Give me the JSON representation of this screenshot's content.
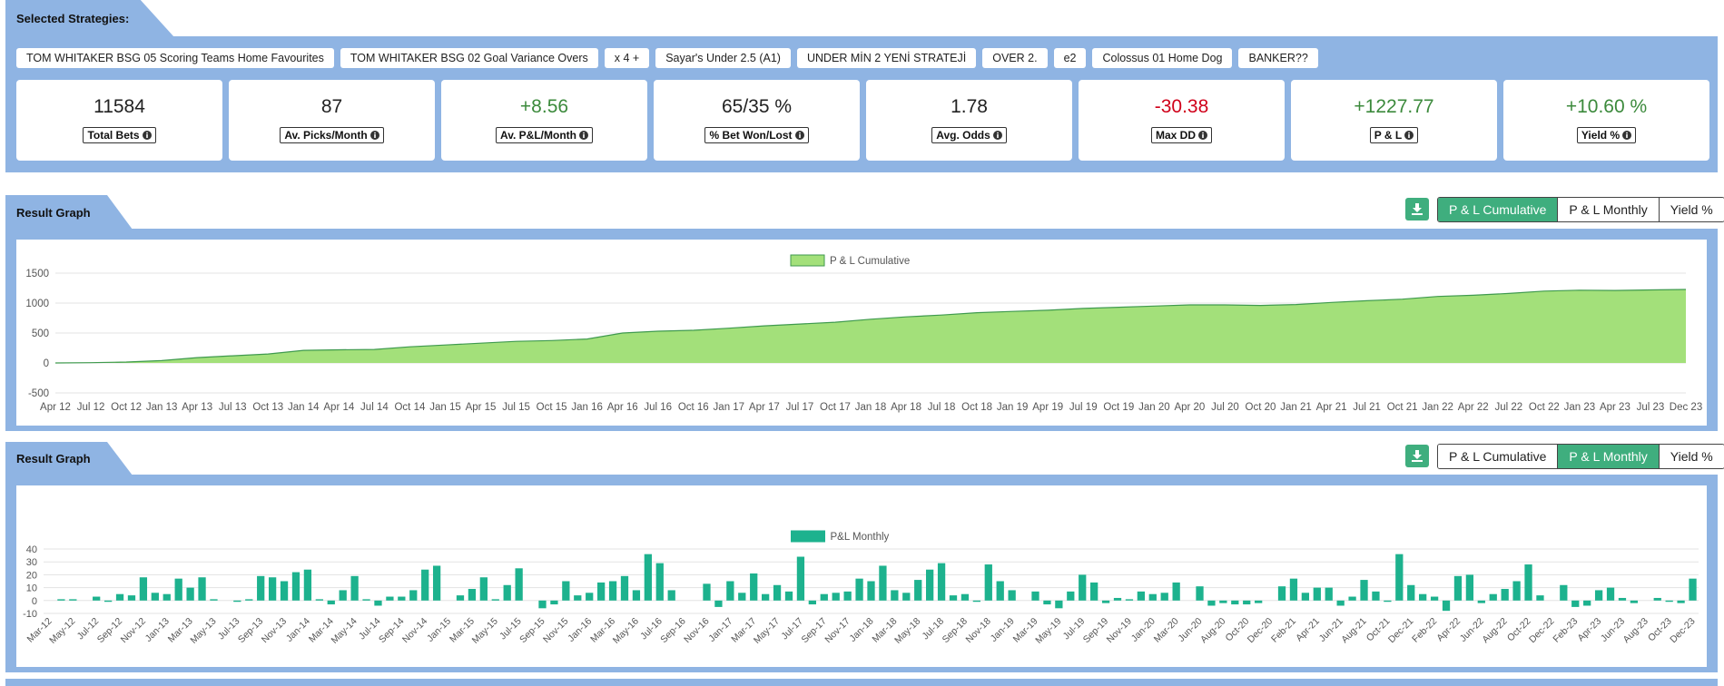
{
  "header": {
    "title": "Selected Strategies:"
  },
  "strategies": [
    "TOM WHITAKER BSG 05 Scoring Teams Home Favourites",
    "TOM WHITAKER BSG 02 Goal Variance Overs",
    "x 4 +",
    "Sayar's Under 2.5 (A1)",
    "UNDER MİN 2 YENİ STRATEJİ",
    "OVER 2.",
    "e2",
    "Colossus 01 Home Dog",
    "BANKER??"
  ],
  "stats": [
    {
      "value": "11584",
      "label": "Total Bets",
      "color": "#222222"
    },
    {
      "value": "87",
      "label": "Av. Picks/Month",
      "color": "#222222"
    },
    {
      "value": "+8.56",
      "label": "Av. P&L/Month",
      "color": "#3c8a3c"
    },
    {
      "value": "65/35 %",
      "label": "% Bet Won/Lost",
      "color": "#222222"
    },
    {
      "value": "1.78",
      "label": "Avg. Odds",
      "color": "#222222"
    },
    {
      "value": "-30.38",
      "label": "Max DD",
      "color": "#d0021b"
    },
    {
      "value": "+1227.77",
      "label": "P & L",
      "color": "#3c8a3c"
    },
    {
      "value": "+10.60 %",
      "label": "Yield %",
      "color": "#3c8a3c"
    }
  ],
  "sections": [
    {
      "title": "Result Graph",
      "buttons": [
        "P & L Cumulative",
        "P & L Monthly",
        "Yield %"
      ],
      "active": 0
    },
    {
      "title": "Result Graph",
      "buttons": [
        "P & L Cumulative",
        "P & L Monthly",
        "Yield %"
      ],
      "active": 1
    }
  ],
  "chart_data": [
    {
      "type": "area",
      "categories": [
        "Apr 12",
        "Jul 12",
        "Oct 12",
        "Jan 13",
        "Apr 13",
        "Jul 13",
        "Oct 13",
        "Jan 14",
        "Apr 14",
        "Jul 14",
        "Oct 14",
        "Jan 15",
        "Apr 15",
        "Jul 15",
        "Oct 15",
        "Jan 16",
        "Apr 16",
        "Jul 16",
        "Oct 16",
        "Jan 17",
        "Apr 17",
        "Jul 17",
        "Oct 17",
        "Jan 18",
        "Apr 18",
        "Jul 18",
        "Oct 18",
        "Jan 19",
        "Apr 19",
        "Jul 19",
        "Oct 19",
        "Jan 20",
        "Apr 20",
        "Jul 20",
        "Oct 20",
        "Jan 21",
        "Apr 21",
        "Jul 21",
        "Oct 21",
        "Jan 22",
        "Apr 22",
        "Jul 22",
        "Oct 22",
        "Jan 23",
        "Apr 23",
        "Jul 23",
        "Dec 23"
      ],
      "series": [
        {
          "name": "P & L Cumulative",
          "color": "#a3e07a",
          "line_color": "#3f9a4e",
          "values": [
            0,
            5,
            15,
            40,
            90,
            120,
            150,
            210,
            220,
            225,
            270,
            300,
            330,
            360,
            375,
            400,
            500,
            530,
            545,
            580,
            620,
            650,
            680,
            730,
            770,
            800,
            840,
            860,
            880,
            910,
            930,
            950,
            970,
            970,
            960,
            975,
            1010,
            1040,
            1065,
            1110,
            1130,
            1160,
            1200,
            1215,
            1210,
            1220,
            1228
          ]
        }
      ],
      "ylim": [
        -500,
        1500
      ],
      "yticks": [
        -500,
        0,
        500,
        1000,
        1500
      ],
      "grid": true,
      "legend": "top"
    },
    {
      "type": "bar",
      "categories": [
        "Mar-12",
        null,
        "May-12",
        null,
        "Jul-12",
        null,
        "Sep-12",
        null,
        "Nov-12",
        null,
        "Jan-13",
        null,
        "Mar-13",
        null,
        "May-13",
        null,
        "Jul-13",
        null,
        "Sep-13",
        null,
        "Nov-13",
        null,
        "Jan-14",
        null,
        "Mar-14",
        null,
        "May-14",
        null,
        "Jul-14",
        null,
        "Sep-14",
        null,
        "Nov-14",
        null,
        "Jan-15",
        null,
        "Mar-15",
        null,
        "May-15",
        null,
        "Jul-15",
        null,
        "Sep-15",
        null,
        "Nov-15",
        null,
        "Jan-16",
        null,
        "Mar-16",
        null,
        "May-16",
        null,
        "Jul-16",
        null,
        "Sep-16",
        null,
        "Nov-16",
        null,
        "Jan-17",
        null,
        "Mar-17",
        null,
        "May-17",
        null,
        "Jul-17",
        null,
        "Sep-17",
        null,
        "Nov-17",
        null,
        "Jan-18",
        null,
        "Mar-18",
        null,
        "May-18",
        null,
        "Jul-18",
        null,
        "Sep-18",
        null,
        "Nov-18",
        null,
        "Jan-19",
        null,
        "Mar-19",
        null,
        "May-19",
        null,
        "Jul-19",
        null,
        "Sep-19",
        null,
        "Nov-19",
        null,
        "Jan-20",
        null,
        "Mar-20",
        null,
        "Jun-20",
        null,
        "Aug-20",
        null,
        "Oct-20",
        null,
        "Dec-20",
        null,
        "Feb-21",
        null,
        "Apr-21",
        null,
        "Jun-21",
        null,
        "Aug-21",
        null,
        "Oct-21",
        null,
        "Dec-21",
        null,
        "Feb-22",
        null,
        "Apr-22",
        null,
        "Jun-22",
        null,
        "Aug-22",
        null,
        "Oct-22",
        null,
        "Dec-22",
        null,
        "Feb-23",
        null,
        "Apr-23",
        null,
        "Jun-23",
        null,
        "Aug-23",
        null,
        "Oct-23",
        null,
        "Dec-23"
      ],
      "series": [
        {
          "name": "P&L Monthly",
          "color": "#1db28e",
          "values": [
            0,
            1,
            1,
            0,
            3,
            -1,
            5,
            4,
            18,
            6,
            5,
            17,
            10,
            18,
            1,
            0,
            -1,
            1,
            19,
            18,
            15,
            22,
            24,
            1,
            -3,
            8,
            19,
            1,
            -4,
            3,
            3,
            8,
            24,
            27,
            0,
            4,
            9,
            18,
            1,
            12,
            25,
            0,
            -6,
            -3,
            15,
            4,
            6,
            14,
            15,
            19,
            8,
            36,
            29,
            8,
            0,
            0,
            13,
            -5,
            15,
            6,
            21,
            5,
            12,
            7,
            34,
            -3,
            5,
            6,
            7,
            17,
            15,
            27,
            8,
            6,
            16,
            24,
            29,
            4,
            5,
            -1,
            28,
            15,
            8,
            0,
            7,
            -3,
            -6,
            7,
            20,
            14,
            -2,
            2,
            1,
            7,
            5,
            6,
            14,
            0,
            11,
            -4,
            -2,
            -3,
            -3,
            -2,
            0,
            11,
            17,
            6,
            10,
            10,
            -4,
            3,
            16,
            7,
            -1,
            36,
            12,
            5,
            3,
            -8,
            19,
            20,
            -2,
            5,
            9,
            15,
            28,
            4,
            0,
            12,
            -5,
            -4,
            8,
            10,
            2,
            -2,
            0,
            2,
            -1,
            -2,
            17
          ]
        }
      ],
      "ylim": [
        -10,
        40
      ],
      "yticks": [
        -10,
        0,
        10,
        20,
        30,
        40
      ],
      "grid": true,
      "legend": "top"
    }
  ]
}
